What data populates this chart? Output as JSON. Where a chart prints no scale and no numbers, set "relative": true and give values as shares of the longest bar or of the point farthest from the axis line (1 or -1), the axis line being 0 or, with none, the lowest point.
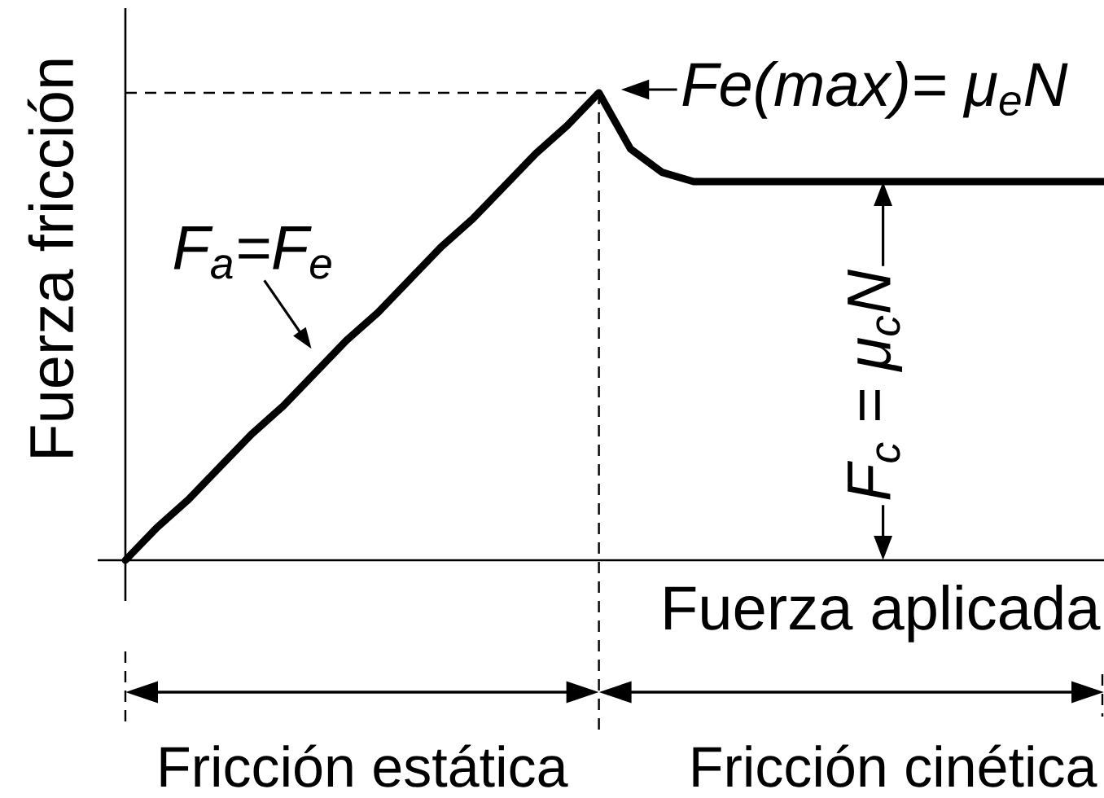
{
  "chart_data": {
    "type": "line",
    "xlabel": "Fuerza aplicada",
    "ylabel": "Fuerza fricción",
    "relative": true,
    "color": "#000000",
    "categories": [
      null,
      null,
      null,
      null,
      null,
      null,
      null,
      null,
      null,
      null,
      null,
      null,
      null,
      null,
      null,
      null,
      null,
      null,
      null,
      null,
      null,
      null,
      null,
      null,
      null,
      null,
      null,
      null,
      null,
      null,
      null,
      null
    ],
    "values": [
      0,
      0.07,
      0.13,
      0.2,
      0.27,
      0.33,
      0.4,
      0.47,
      0.53,
      0.6,
      0.67,
      0.73,
      0.8,
      0.87,
      0.93,
      1,
      0.88,
      0.83,
      0.81,
      0.81,
      0.81,
      0.81,
      0.81,
      0.81,
      0.81,
      0.81,
      0.81,
      0.81,
      0.81,
      0.81,
      0.81,
      0.81
    ],
    "ref_lines": [
      {
        "axis": "y",
        "value": 1,
        "line_style": "dashed"
      }
    ],
    "annotations": [
      "F$_{a}$=F$_{e}$",
      "Fe(max)= μ$_{e}$N",
      {
        "text": "F$_{c}$ = μ$_{c}$N",
        "y": 0.81
      },
      "Fricción estática",
      "Fricción cinética"
    ]
  }
}
